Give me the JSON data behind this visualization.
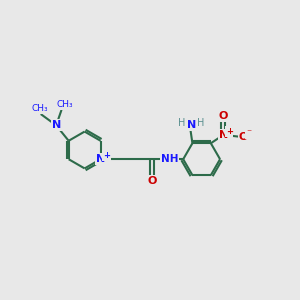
{
  "bg_color": "#e8e8e8",
  "bond_color": "#2d6b4a",
  "bond_width": 1.5,
  "N_color": "#1a1aff",
  "O_color": "#cc0000",
  "H_color": "#5a9090",
  "figsize": [
    3.0,
    3.0
  ],
  "dpi": 100,
  "xlim": [
    0,
    10
  ],
  "ylim": [
    2,
    8
  ]
}
